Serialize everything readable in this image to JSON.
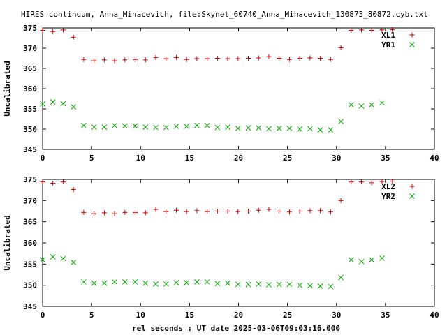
{
  "title": "HIRES continuum, Anna_Mihacevich, file:Skynet_60740_Anna_Mihacevich_130873_80872.cyb.txt",
  "xlabel": "rel seconds : UT date 2025-03-06T09:03:16.000",
  "colors": {
    "xl": "#cc0000",
    "yr": "#00aa00",
    "axis": "#000000"
  },
  "chart_data": [
    {
      "type": "scatter",
      "ylabel": "Uncalibrated",
      "xlim": [
        0,
        40
      ],
      "ylim": [
        345,
        375
      ],
      "xticks": [
        0,
        5,
        10,
        15,
        20,
        25,
        30,
        35,
        40
      ],
      "yticks": [
        345,
        350,
        355,
        360,
        365,
        370,
        375
      ],
      "grid": false,
      "legend": "top-right",
      "series": [
        {
          "name": "XL1",
          "marker": "plus",
          "x": [
            0,
            1.05,
            2.1,
            3.15,
            4.2,
            5.25,
            6.3,
            7.35,
            8.4,
            9.45,
            10.5,
            11.55,
            12.6,
            13.65,
            14.7,
            15.75,
            16.8,
            17.85,
            18.9,
            19.95,
            21.0,
            22.05,
            23.1,
            24.15,
            25.2,
            26.25,
            27.3,
            28.35,
            29.4,
            30.45,
            31.5,
            32.55,
            33.6,
            34.65,
            35.7
          ],
          "y": [
            374.4,
            374.1,
            374.5,
            372.7,
            367.2,
            366.9,
            367.1,
            366.9,
            367.1,
            367.2,
            367.1,
            367.7,
            367.4,
            367.7,
            367.2,
            367.4,
            367.4,
            367.5,
            367.4,
            367.4,
            367.5,
            367.6,
            367.9,
            367.5,
            367.2,
            367.5,
            367.6,
            367.5,
            367.2,
            370.1,
            374.4,
            374.5,
            374.4,
            374.5,
            374.6
          ]
        },
        {
          "name": "YR1",
          "marker": "x",
          "x": [
            0,
            1.05,
            2.1,
            3.15,
            4.2,
            5.25,
            6.3,
            7.35,
            8.4,
            9.45,
            10.5,
            11.55,
            12.6,
            13.65,
            14.7,
            15.75,
            16.8,
            17.85,
            18.9,
            19.95,
            21.0,
            22.05,
            23.1,
            24.15,
            25.2,
            26.25,
            27.3,
            28.35,
            29.4,
            30.45,
            31.5,
            32.55,
            33.6,
            34.65
          ],
          "y": [
            356.2,
            356.7,
            356.3,
            355.5,
            350.9,
            350.5,
            350.5,
            350.9,
            350.8,
            350.8,
            350.5,
            350.4,
            350.4,
            350.7,
            350.7,
            350.9,
            350.9,
            350.4,
            350.5,
            350.2,
            350.3,
            350.3,
            350.1,
            350.2,
            350.2,
            350.0,
            350.1,
            349.8,
            349.8,
            351.9,
            356.0,
            355.7,
            356.0,
            356.5
          ]
        }
      ]
    },
    {
      "type": "scatter",
      "ylabel": "Uncalibrated",
      "xlim": [
        0,
        40
      ],
      "ylim": [
        345,
        375
      ],
      "xticks": [
        0,
        5,
        10,
        15,
        20,
        25,
        30,
        35,
        40
      ],
      "yticks": [
        345,
        350,
        355,
        360,
        365,
        370,
        375
      ],
      "grid": false,
      "legend": "top-right",
      "series": [
        {
          "name": "XL2",
          "marker": "plus",
          "x": [
            0,
            1.05,
            2.1,
            3.15,
            4.2,
            5.25,
            6.3,
            7.35,
            8.4,
            9.45,
            10.5,
            11.55,
            12.6,
            13.65,
            14.7,
            15.75,
            16.8,
            17.85,
            18.9,
            19.95,
            21.0,
            22.05,
            23.1,
            24.15,
            25.2,
            26.25,
            27.3,
            28.35,
            29.4,
            30.45,
            31.5,
            32.55,
            33.6,
            34.65,
            35.7
          ],
          "y": [
            374.4,
            374.1,
            374.4,
            372.6,
            367.2,
            366.9,
            367.1,
            366.9,
            367.2,
            367.2,
            367.1,
            367.9,
            367.4,
            367.7,
            367.4,
            367.6,
            367.4,
            367.5,
            367.5,
            367.4,
            367.5,
            367.7,
            367.9,
            367.5,
            367.3,
            367.5,
            367.6,
            367.6,
            367.3,
            370.0,
            374.4,
            374.4,
            374.2,
            374.5,
            374.6
          ]
        },
        {
          "name": "YR2",
          "marker": "x",
          "x": [
            0,
            1.05,
            2.1,
            3.15,
            4.2,
            5.25,
            6.3,
            7.35,
            8.4,
            9.45,
            10.5,
            11.55,
            12.6,
            13.65,
            14.7,
            15.75,
            16.8,
            17.85,
            18.9,
            19.95,
            21.0,
            22.05,
            23.1,
            24.15,
            25.2,
            26.25,
            27.3,
            28.35,
            29.4,
            30.45,
            31.5,
            32.55,
            33.6,
            34.65
          ],
          "y": [
            356.0,
            356.7,
            356.3,
            355.4,
            350.8,
            350.5,
            350.5,
            350.8,
            350.8,
            350.8,
            350.5,
            350.3,
            350.3,
            350.6,
            350.6,
            350.8,
            350.8,
            350.4,
            350.5,
            350.2,
            350.2,
            350.3,
            350.1,
            350.2,
            350.2,
            350.0,
            349.9,
            349.8,
            349.7,
            351.8,
            356.0,
            355.6,
            356.0,
            356.4
          ]
        }
      ]
    }
  ]
}
